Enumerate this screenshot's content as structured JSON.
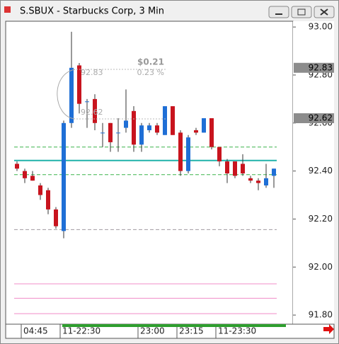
{
  "window_title": "S.SBUX - Starbucks Corp, 3 Min",
  "chart_data": {
    "type": "candlestick",
    "categories": [
      null,
      "04:45",
      null,
      null,
      null,
      null,
      "11-22:30",
      null,
      null,
      null,
      null,
      null,
      null,
      null,
      null,
      null,
      "23:00",
      null,
      null,
      null,
      null,
      "23:15",
      null,
      null,
      null,
      null,
      "11-23:30",
      null,
      null,
      null,
      null,
      null,
      null,
      null
    ],
    "open": [
      92.43,
      92.4,
      92.38,
      92.34,
      92.32,
      92.24,
      92.15,
      92.6,
      92.84,
      92.69,
      92.7,
      92.56,
      92.6,
      92.56,
      92.58,
      92.65,
      92.51,
      92.57,
      92.59,
      92.55,
      92.67,
      92.56,
      92.4,
      92.57,
      92.56,
      92.62,
      92.5,
      92.44,
      92.44,
      92.43,
      92.37,
      92.36,
      92.34,
      92.38
    ],
    "high": [
      92.44,
      92.41,
      92.4,
      92.35,
      92.33,
      92.25,
      92.61,
      92.98,
      92.85,
      92.7,
      92.72,
      92.6,
      92.6,
      92.62,
      92.74,
      92.67,
      92.6,
      92.6,
      92.6,
      92.67,
      92.67,
      92.57,
      92.55,
      92.58,
      92.62,
      92.62,
      92.5,
      92.45,
      92.44,
      92.47,
      92.38,
      92.37,
      92.43,
      92.41
    ],
    "low": [
      92.4,
      92.35,
      92.36,
      92.28,
      92.22,
      92.16,
      92.12,
      92.58,
      92.64,
      92.58,
      92.57,
      92.5,
      92.48,
      92.48,
      92.56,
      92.48,
      92.48,
      92.56,
      92.55,
      92.55,
      92.55,
      92.38,
      92.39,
      92.55,
      92.56,
      92.49,
      92.42,
      92.35,
      92.37,
      92.38,
      92.35,
      92.32,
      92.33,
      92.33
    ],
    "close": [
      92.41,
      92.37,
      92.36,
      92.3,
      92.24,
      92.17,
      92.6,
      92.83,
      92.68,
      92.69,
      92.6,
      92.56,
      92.52,
      92.56,
      92.61,
      92.51,
      92.59,
      92.59,
      92.56,
      92.67,
      92.55,
      92.4,
      92.54,
      92.56,
      92.62,
      92.5,
      92.44,
      92.39,
      92.38,
      92.39,
      92.36,
      92.35,
      92.37,
      92.41
    ],
    "up_color": "#1f6fd6",
    "down_color": "#c8141e",
    "ylim": [
      91.762,
      93.024
    ],
    "yticks": [
      {
        "value": 93.0,
        "label": "93.00"
      },
      {
        "value": 92.8,
        "label": "92.80"
      },
      {
        "value": 92.6,
        "label": "92.60"
      },
      {
        "value": 92.4,
        "label": "92.40"
      },
      {
        "value": 92.2,
        "label": "92.20"
      },
      {
        "value": 92.0,
        "label": "92.00"
      },
      {
        "value": 91.8,
        "label": "91.80"
      }
    ],
    "levels": [
      {
        "value": 92.5,
        "color": "#3cb44b",
        "style": "dashed"
      },
      {
        "value": 92.385,
        "color": "#3cb44b",
        "style": "dashed"
      },
      {
        "value": 92.444,
        "color": "#20b2aa",
        "style": "solid"
      },
      {
        "value": 92.156,
        "color": "#a09aa0",
        "style": "dashed"
      },
      {
        "value": 91.93,
        "color": "#f08cc8",
        "style": "solid"
      },
      {
        "value": 91.87,
        "color": "#f08cc8",
        "style": "solid"
      },
      {
        "value": 91.806,
        "color": "#f08cc8",
        "style": "solid"
      }
    ],
    "price_labels": [
      92.83,
      92.62
    ],
    "measure": {
      "change": "$0.21",
      "percent": "0.23 %",
      "from": "92.83",
      "to": "92.62"
    }
  }
}
